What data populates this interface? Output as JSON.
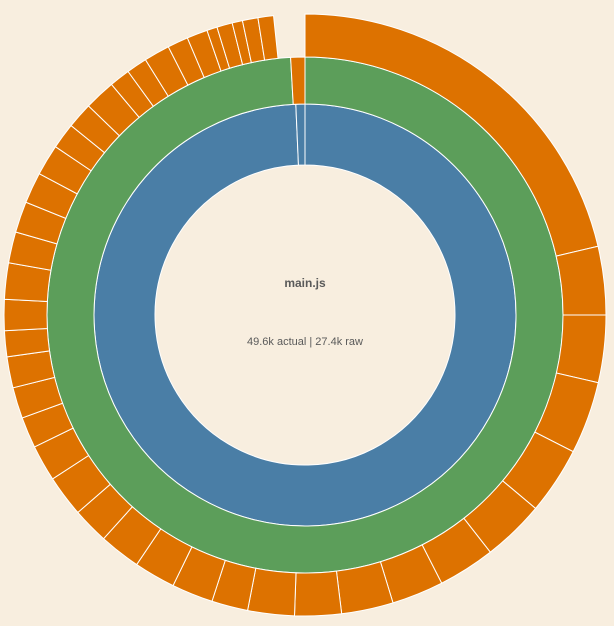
{
  "chart_data": {
    "type": "sunburst",
    "title": "main.js",
    "subtitle": "49.6k actual | 27.4k raw",
    "rings": [
      {
        "values": [
          357.5,
          2.5
        ],
        "colors": [
          "#4a7ea6",
          "#4a7ea6"
        ]
      },
      {
        "values": [
          356.8,
          3.2
        ],
        "colors": [
          "#5c9e5a",
          "#dd7200"
        ]
      },
      {
        "values": [
          76.8,
          13.2,
          13,
          14,
          13,
          12,
          11,
          10,
          10,
          9,
          9,
          7,
          8,
          8,
          8,
          7,
          8,
          7,
          6,
          6,
          6,
          5,
          6,
          7,
          6,
          6,
          6,
          6,
          5,
          5,
          6,
          4,
          4,
          5,
          4,
          4,
          2,
          3,
          2,
          3,
          3
        ],
        "color": "#dd7200"
      }
    ]
  }
}
